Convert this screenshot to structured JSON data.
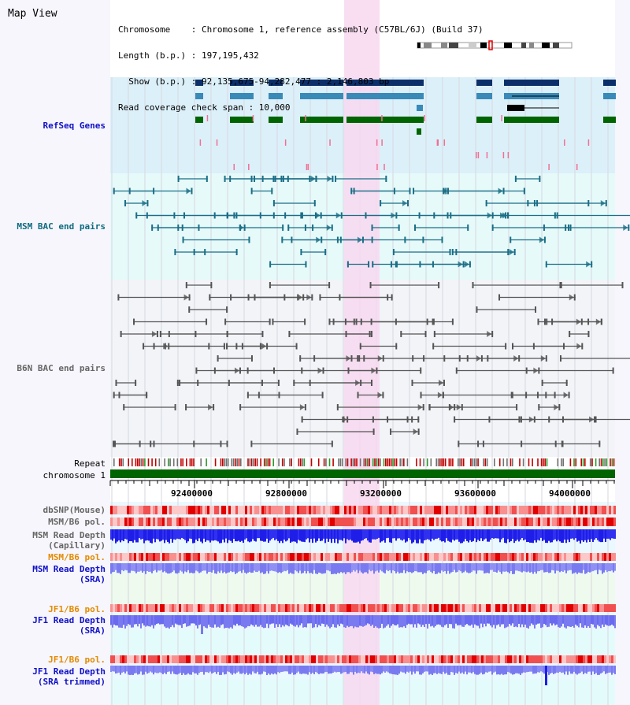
{
  "app": {
    "title": "Map View"
  },
  "info": {
    "chromosome": "Chromosome    : Chromosome 1, reference assembly (C57BL/6J) (Build 37)",
    "length": "Length (b.p.) : 197,195,432",
    "show": "  Show (b.p.) : 92,135,675-94,282,477 : 2,146,803 bp",
    "coverage": "Read coverage check span : 10,000"
  },
  "tracks": {
    "refseq": "RefSeq Genes",
    "msm_bac": "MSM BAC end pairs",
    "b6n_bac": "B6N BAC end pairs",
    "repeat": "Repeat",
    "chromosome": "chromosome 1",
    "dbsnp": "dbSNP(Mouse)",
    "msm_b6_pol_1": "MSM/B6 pol.",
    "msm_depth_cap": "MSM Read Depth\n(Capillary)",
    "msm_b6_pol_2": "MSM/B6 pol.",
    "msm_depth_sra": "MSM Read Depth\n(SRA)",
    "jf1_b6_pol_1": "JF1/B6 pol.",
    "jf1_depth_sra": "JF1 Read Depth\n(SRA)",
    "jf1_b6_pol_2": "JF1/B6 pol.",
    "jf1_depth_trim": "JF1 Read Depth\n(SRA trimmed)"
  },
  "axis": {
    "ticks": [
      "92400000",
      "92800000",
      "93200000",
      "93600000",
      "94000000"
    ]
  },
  "colors": {
    "refseq_bg": "#dcf0fa",
    "msm_bg": "#e6fafa",
    "b6n_bg": "#f2f4f8",
    "highlight": "#f8d8f0",
    "gene_dark": "#0c2f6a",
    "gene_mid": "#3a8ab8",
    "gene_green": "#006400",
    "bac_teal": "#1a6e86",
    "bac_gray": "#555555",
    "depth_blue": "#1e1ee8",
    "depth_light": "#7a7af0"
  }
}
